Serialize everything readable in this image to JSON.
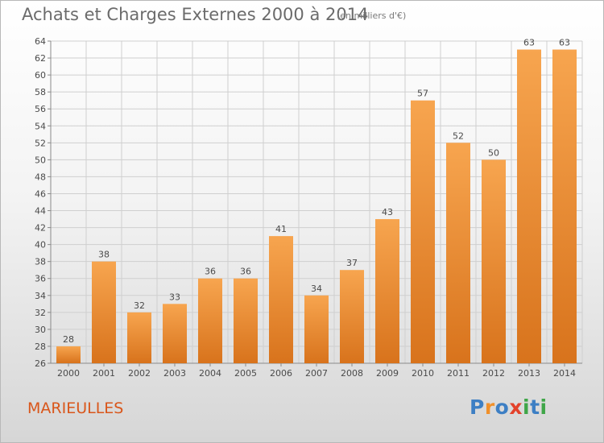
{
  "header": {
    "title": "Achats et Charges Externes 2000 à 2014",
    "subtitle": "(en milliers d'€)"
  },
  "footer": {
    "place": "MARIEULLES",
    "logo": "Proxiti",
    "logo_letter_colors": [
      "#3d7fc4",
      "#f0902a",
      "#3d7fc4",
      "#e3422b",
      "#3fa648",
      "#3d7fc4",
      "#3fa648"
    ]
  },
  "colors": {
    "bar_top": "#f7a54f",
    "bar_bottom": "#d8731c",
    "grid": "#cfcfcf",
    "axis": "#8a8a8a"
  },
  "chart_data": {
    "type": "bar",
    "title": "Achats et Charges Externes 2000 à 2014",
    "subtitle": "(en milliers d'€)",
    "categories": [
      "2000",
      "2001",
      "2002",
      "2003",
      "2004",
      "2005",
      "2006",
      "2007",
      "2008",
      "2009",
      "2010",
      "2011",
      "2012",
      "2013",
      "2014"
    ],
    "values": [
      28,
      38,
      32,
      33,
      36,
      36,
      41,
      34,
      37,
      43,
      57,
      52,
      50,
      63,
      63
    ],
    "ylim": [
      26,
      64
    ],
    "ytick_step": 2,
    "grid": true,
    "legend": "none"
  }
}
